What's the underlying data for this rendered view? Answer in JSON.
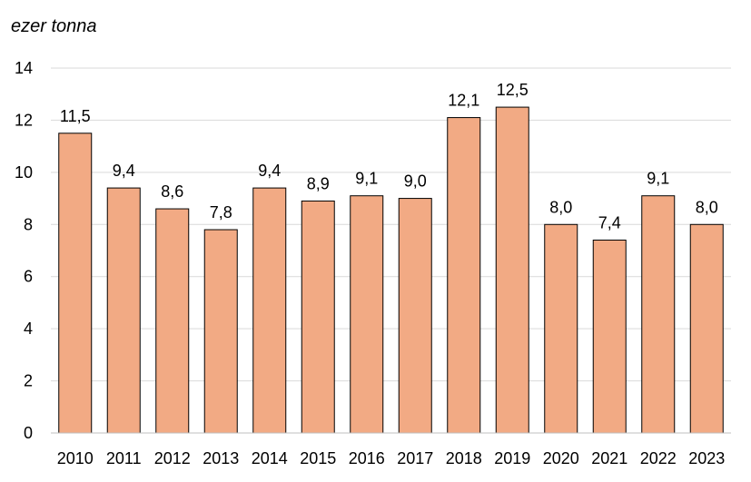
{
  "chart_data": {
    "type": "bar",
    "title": "",
    "unit_label": "ezer tonna",
    "xlabel": "",
    "ylabel": "",
    "categories": [
      "2010",
      "2011",
      "2012",
      "2013",
      "2014",
      "2015",
      "2016",
      "2017",
      "2018",
      "2019",
      "2020",
      "2021",
      "2022",
      "2023"
    ],
    "values": [
      11.5,
      9.4,
      8.6,
      7.8,
      9.4,
      8.9,
      9.1,
      9.0,
      12.1,
      12.5,
      8.0,
      7.4,
      9.1,
      8.0
    ],
    "data_labels": [
      "11,5",
      "9,4",
      "8,6",
      "7,8",
      "9,4",
      "8,9",
      "9,1",
      "9,0",
      "12,1",
      "12,5",
      "8,0",
      "7,4",
      "9,1",
      "8,0"
    ],
    "ylim": [
      0,
      14
    ],
    "yticks": [
      0,
      2,
      4,
      6,
      8,
      10,
      12,
      14
    ],
    "ytick_labels": [
      "0",
      "2",
      "4",
      "6",
      "8",
      "10",
      "12",
      "14"
    ],
    "grid": true,
    "legend": "none",
    "colors": {
      "bar_fill": "#F2AA84",
      "bar_stroke": "#000000",
      "grid": "#D9D9D9",
      "axis": "#BFBFBF"
    }
  }
}
